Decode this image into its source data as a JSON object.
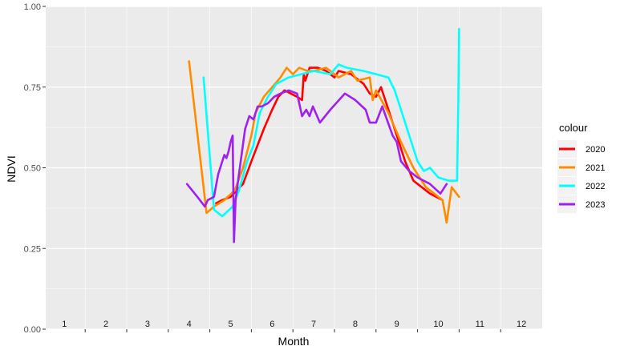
{
  "chart_data": {
    "type": "line",
    "xlabel": "Month",
    "ylabel": "NDVI",
    "xlim": [
      0.55,
      12.5
    ],
    "ylim": [
      0,
      1
    ],
    "x_tick_labels": [
      "1",
      "2",
      "3",
      "4",
      "5",
      "6",
      "7",
      "8",
      "9",
      "10",
      "11",
      "12"
    ],
    "y_ticks": [
      0,
      0.25,
      0.5,
      0.75,
      1
    ],
    "y_tick_labels": [
      "0.00",
      "0.25",
      "0.50",
      "0.75",
      "1.00"
    ],
    "grid": true,
    "background": "#ebebeb",
    "legend": {
      "title": "colour",
      "position": "right"
    },
    "series": [
      {
        "name": "2020",
        "color": "#ff0000",
        "points": [
          [
            4.65,
            0.39
          ],
          [
            4.8,
            0.4
          ],
          [
            5.0,
            0.41
          ],
          [
            5.3,
            0.45
          ],
          [
            5.5,
            0.52
          ],
          [
            5.8,
            0.62
          ],
          [
            6.0,
            0.68
          ],
          [
            6.15,
            0.72
          ],
          [
            6.3,
            0.74
          ],
          [
            6.6,
            0.72
          ],
          [
            6.72,
            0.71
          ],
          [
            6.76,
            0.79
          ],
          [
            6.8,
            0.77
          ],
          [
            6.9,
            0.81
          ],
          [
            7.1,
            0.81
          ],
          [
            7.3,
            0.8
          ],
          [
            7.5,
            0.78
          ],
          [
            7.6,
            0.8
          ],
          [
            7.9,
            0.79
          ],
          [
            8.2,
            0.76
          ],
          [
            8.35,
            0.73
          ],
          [
            8.5,
            0.72
          ],
          [
            8.62,
            0.75
          ],
          [
            8.8,
            0.68
          ],
          [
            9.0,
            0.6
          ],
          [
            9.2,
            0.52
          ],
          [
            9.4,
            0.46
          ],
          [
            9.8,
            0.42
          ],
          [
            10.1,
            0.4
          ]
        ]
      },
      {
        "name": "2021",
        "color": "#ff8c00",
        "points": [
          [
            4.0,
            0.83
          ],
          [
            4.42,
            0.36
          ],
          [
            4.6,
            0.38
          ],
          [
            4.85,
            0.4
          ],
          [
            5.1,
            0.43
          ],
          [
            5.3,
            0.5
          ],
          [
            5.5,
            0.6
          ],
          [
            5.6,
            0.67
          ],
          [
            5.8,
            0.72
          ],
          [
            6.0,
            0.75
          ],
          [
            6.2,
            0.78
          ],
          [
            6.35,
            0.81
          ],
          [
            6.5,
            0.79
          ],
          [
            6.65,
            0.81
          ],
          [
            6.85,
            0.8
          ],
          [
            7.0,
            0.8
          ],
          [
            7.3,
            0.81
          ],
          [
            7.6,
            0.78
          ],
          [
            7.9,
            0.8
          ],
          [
            8.05,
            0.77
          ],
          [
            8.35,
            0.78
          ],
          [
            8.42,
            0.71
          ],
          [
            8.5,
            0.74
          ],
          [
            8.8,
            0.67
          ],
          [
            9.1,
            0.58
          ],
          [
            9.4,
            0.5
          ],
          [
            9.7,
            0.44
          ],
          [
            10.1,
            0.4
          ],
          [
            10.2,
            0.33
          ],
          [
            10.32,
            0.44
          ],
          [
            10.5,
            0.41
          ]
        ]
      },
      {
        "name": "2022",
        "color": "#00ffff",
        "points": [
          [
            4.35,
            0.78
          ],
          [
            4.6,
            0.37
          ],
          [
            4.8,
            0.35
          ],
          [
            5.05,
            0.38
          ],
          [
            5.2,
            0.43
          ],
          [
            5.4,
            0.52
          ],
          [
            5.55,
            0.57
          ],
          [
            5.7,
            0.67
          ],
          [
            5.9,
            0.72
          ],
          [
            6.1,
            0.76
          ],
          [
            6.4,
            0.78
          ],
          [
            6.7,
            0.79
          ],
          [
            7.0,
            0.8
          ],
          [
            7.4,
            0.79
          ],
          [
            7.6,
            0.82
          ],
          [
            7.8,
            0.81
          ],
          [
            8.2,
            0.8
          ],
          [
            8.5,
            0.79
          ],
          [
            8.8,
            0.78
          ],
          [
            8.95,
            0.74
          ],
          [
            9.1,
            0.68
          ],
          [
            9.3,
            0.6
          ],
          [
            9.5,
            0.52
          ],
          [
            9.65,
            0.49
          ],
          [
            9.8,
            0.5
          ],
          [
            10.0,
            0.47
          ],
          [
            10.25,
            0.46
          ],
          [
            10.45,
            0.46
          ],
          [
            10.48,
            0.7
          ],
          [
            10.5,
            0.93
          ]
        ]
      },
      {
        "name": "2023",
        "color": "#a020f0",
        "points": [
          [
            3.95,
            0.45
          ],
          [
            4.2,
            0.41
          ],
          [
            4.38,
            0.38
          ],
          [
            4.45,
            0.4
          ],
          [
            4.6,
            0.41
          ],
          [
            4.7,
            0.48
          ],
          [
            4.85,
            0.54
          ],
          [
            4.9,
            0.53
          ],
          [
            4.95,
            0.55
          ],
          [
            5.0,
            0.58
          ],
          [
            5.05,
            0.6
          ],
          [
            5.08,
            0.27
          ],
          [
            5.12,
            0.4
          ],
          [
            5.2,
            0.48
          ],
          [
            5.35,
            0.62
          ],
          [
            5.45,
            0.66
          ],
          [
            5.55,
            0.65
          ],
          [
            5.65,
            0.69
          ],
          [
            5.75,
            0.69
          ],
          [
            5.9,
            0.7
          ],
          [
            6.05,
            0.72
          ],
          [
            6.2,
            0.73
          ],
          [
            6.4,
            0.74
          ],
          [
            6.6,
            0.73
          ],
          [
            6.72,
            0.66
          ],
          [
            6.82,
            0.68
          ],
          [
            6.9,
            0.66
          ],
          [
            6.98,
            0.69
          ],
          [
            7.15,
            0.64
          ],
          [
            7.4,
            0.68
          ],
          [
            7.75,
            0.73
          ],
          [
            8.0,
            0.71
          ],
          [
            8.25,
            0.68
          ],
          [
            8.35,
            0.64
          ],
          [
            8.5,
            0.64
          ],
          [
            8.65,
            0.69
          ],
          [
            8.9,
            0.6
          ],
          [
            9.0,
            0.58
          ],
          [
            9.1,
            0.52
          ],
          [
            9.3,
            0.49
          ],
          [
            9.5,
            0.47
          ],
          [
            9.8,
            0.45
          ],
          [
            10.05,
            0.42
          ],
          [
            10.2,
            0.45
          ]
        ]
      }
    ]
  }
}
